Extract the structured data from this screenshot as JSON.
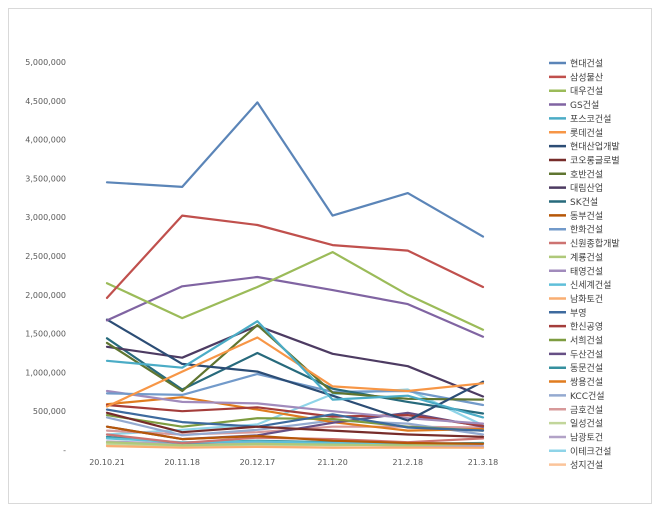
{
  "chart_data": {
    "type": "line",
    "title": "",
    "xlabel": "",
    "ylabel": "",
    "ylim": [
      0,
      5000000
    ],
    "grid": false,
    "legend_position": "right",
    "y_ticks": [
      "-",
      "500,000",
      "1,000,000",
      "1,500,000",
      "2,000,000",
      "2,500,000",
      "3,000,000",
      "3,500,000",
      "4,000,000",
      "4,500,000",
      "5,000,000"
    ],
    "categories": [
      "20.10.21",
      "20.11.18",
      "20.12.17",
      "21.1.20",
      "21.2.18",
      "21.3.18"
    ],
    "series": [
      {
        "name": "현대건설",
        "color": "#5b85b8",
        "values": [
          3450000,
          3390000,
          4480000,
          3020000,
          3310000,
          2750000
        ]
      },
      {
        "name": "삼성물산",
        "color": "#c0504d",
        "values": [
          1960000,
          3020000,
          2900000,
          2640000,
          2570000,
          2100000
        ]
      },
      {
        "name": "대우건설",
        "color": "#9bbb59",
        "values": [
          2150000,
          1700000,
          2100000,
          2550000,
          2000000,
          1550000
        ]
      },
      {
        "name": "GS건설",
        "color": "#8064a2",
        "values": [
          1670000,
          2110000,
          2230000,
          2060000,
          1880000,
          1460000
        ]
      },
      {
        "name": "포스코건설",
        "color": "#4bacc6",
        "values": [
          1150000,
          1060000,
          1660000,
          650000,
          700000,
          420000
        ]
      },
      {
        "name": "롯데건설",
        "color": "#f79646",
        "values": [
          560000,
          1010000,
          1450000,
          820000,
          760000,
          860000
        ]
      },
      {
        "name": "현대산업개발",
        "color": "#2c4d75",
        "values": [
          1680000,
          1110000,
          1010000,
          700000,
          380000,
          880000
        ]
      },
      {
        "name": "코오롱글로벌",
        "color": "#772c2a",
        "values": [
          480000,
          230000,
          300000,
          250000,
          200000,
          170000
        ]
      },
      {
        "name": "호반건설",
        "color": "#5f7530",
        "values": [
          1380000,
          760000,
          1610000,
          740000,
          660000,
          650000
        ]
      },
      {
        "name": "대림산업",
        "color": "#4d3b62",
        "values": [
          1330000,
          1190000,
          1600000,
          1240000,
          1080000,
          690000
        ]
      },
      {
        "name": "SK건설",
        "color": "#276a7c",
        "values": [
          1440000,
          780000,
          1250000,
          790000,
          620000,
          470000
        ]
      },
      {
        "name": "동부건설",
        "color": "#b65708",
        "values": [
          300000,
          140000,
          180000,
          120000,
          90000,
          80000
        ]
      },
      {
        "name": "한화건설",
        "color": "#729aca",
        "values": [
          730000,
          710000,
          980000,
          750000,
          760000,
          580000
        ]
      },
      {
        "name": "신원종합개발",
        "color": "#cd7371",
        "values": [
          200000,
          90000,
          160000,
          140000,
          100000,
          150000
        ]
      },
      {
        "name": "계룡건설",
        "color": "#afc97a",
        "values": [
          100000,
          60000,
          80000,
          70000,
          60000,
          80000
        ]
      },
      {
        "name": "태영건설",
        "color": "#a18bbc",
        "values": [
          760000,
          620000,
          600000,
          500000,
          410000,
          340000
        ]
      },
      {
        "name": "신세계건설",
        "color": "#5fbfd9",
        "values": [
          150000,
          100000,
          110000,
          90000,
          90000,
          80000
        ]
      },
      {
        "name": "남화토건",
        "color": "#f9ae72",
        "values": [
          50000,
          30000,
          40000,
          30000,
          30000,
          30000
        ]
      },
      {
        "name": "부영",
        "color": "#3d6a9e",
        "values": [
          520000,
          360000,
          300000,
          460000,
          290000,
          250000
        ]
      },
      {
        "name": "한신공영",
        "color": "#a43d3b",
        "values": [
          580000,
          500000,
          550000,
          430000,
          450000,
          310000
        ]
      },
      {
        "name": "서희건설",
        "color": "#7e9c40",
        "values": [
          450000,
          300000,
          410000,
          400000,
          300000,
          250000
        ]
      },
      {
        "name": "두산건설",
        "color": "#664f85",
        "values": [
          300000,
          140000,
          190000,
          350000,
          480000,
          300000
        ]
      },
      {
        "name": "동문건설",
        "color": "#36909f",
        "values": [
          170000,
          90000,
          120000,
          100000,
          80000,
          90000
        ]
      },
      {
        "name": "쌍용건설",
        "color": "#e07c1f",
        "values": [
          590000,
          680000,
          520000,
          360000,
          250000,
          270000
        ]
      },
      {
        "name": "KCC건설",
        "color": "#94aad0",
        "values": [
          420000,
          190000,
          260000,
          380000,
          340000,
          200000
        ]
      },
      {
        "name": "금호건설",
        "color": "#d7999a",
        "values": [
          250000,
          200000,
          230000,
          300000,
          300000,
          290000
        ]
      },
      {
        "name": "일성건설",
        "color": "#c2d69b",
        "values": [
          80000,
          50000,
          70000,
          60000,
          70000,
          90000
        ]
      },
      {
        "name": "남광토건",
        "color": "#b2a2c7",
        "values": [
          110000,
          80000,
          90000,
          70000,
          60000,
          50000
        ]
      },
      {
        "name": "이테크건설",
        "color": "#8fd4e8",
        "values": [
          200000,
          260000,
          330000,
          720000,
          780000,
          320000
        ]
      },
      {
        "name": "성지건설",
        "color": "#fbc49a",
        "values": [
          60000,
          40000,
          50000,
          30000,
          40000,
          30000
        ]
      }
    ]
  }
}
